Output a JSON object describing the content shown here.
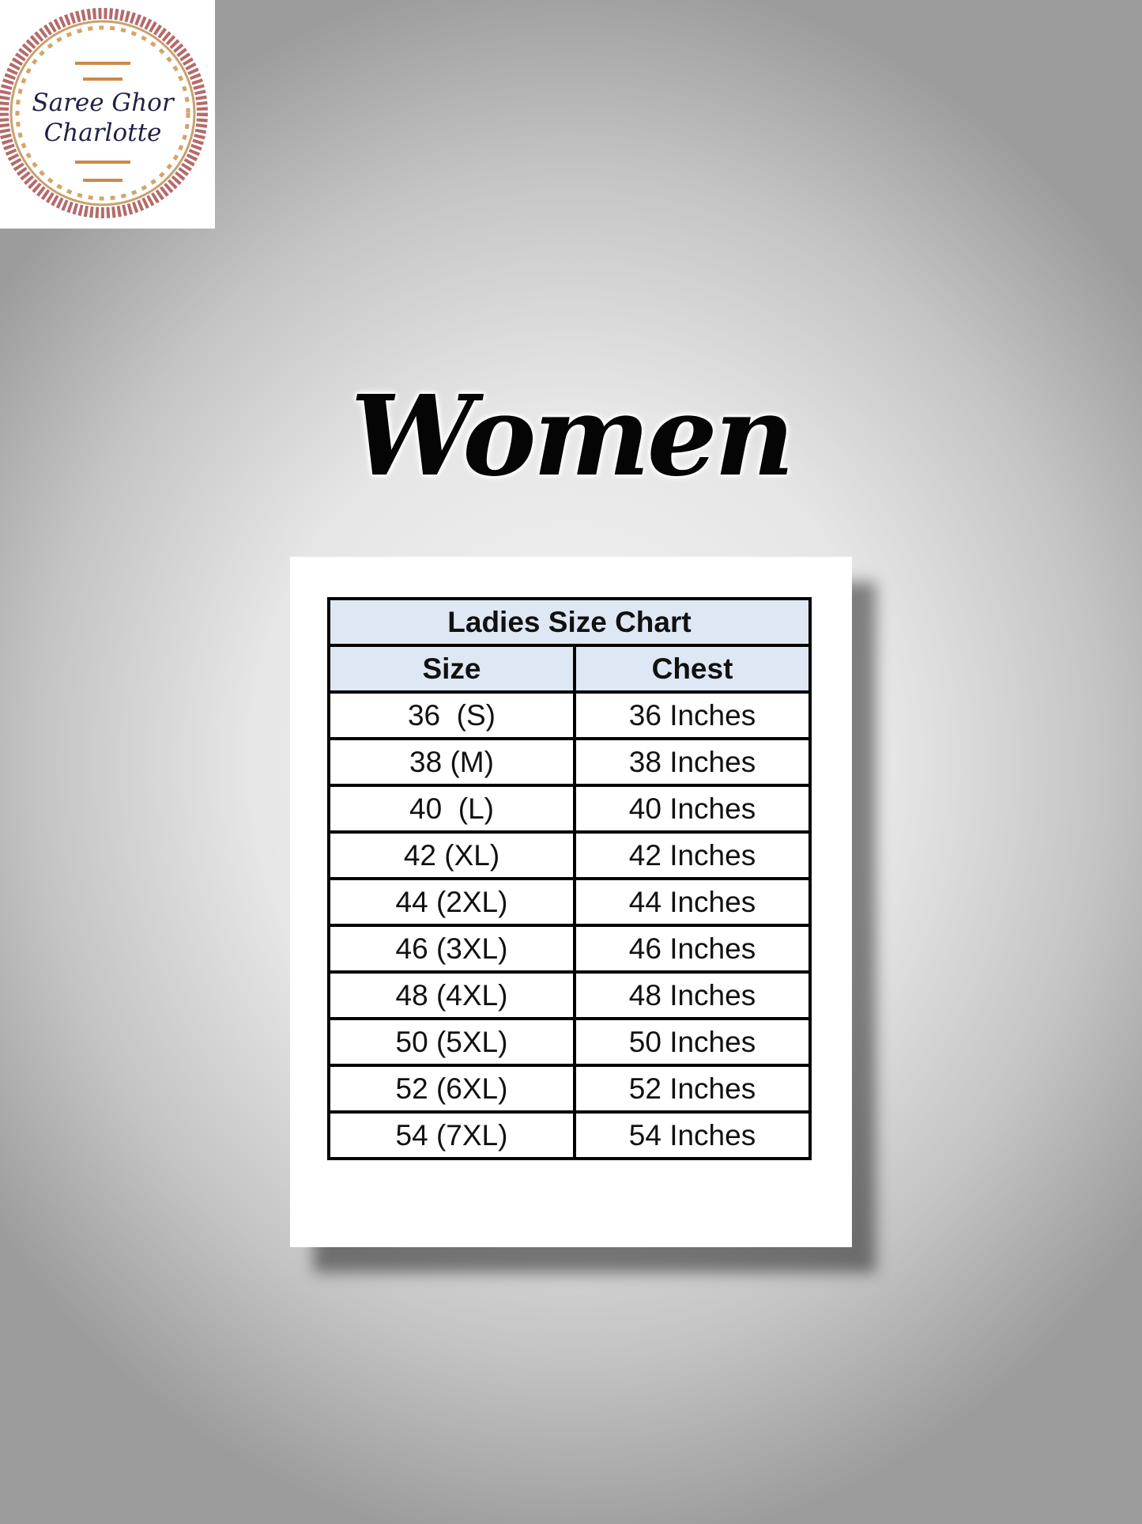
{
  "logo": {
    "line1": "Saree Ghor",
    "line2": "Charlotte"
  },
  "heading": "Women",
  "table": {
    "title": "Ladies Size Chart",
    "columns": [
      "Size",
      "Chest"
    ],
    "rows": [
      [
        "36  (S)",
        "36 Inches"
      ],
      [
        "38 (M)",
        "38 Inches"
      ],
      [
        "40  (L)",
        "40 Inches"
      ],
      [
        "42 (XL)",
        "42 Inches"
      ],
      [
        "44 (2XL)",
        "44 Inches"
      ],
      [
        "46 (3XL)",
        "46 Inches"
      ],
      [
        "48 (4XL)",
        "48 Inches"
      ],
      [
        "50 (5XL)",
        "50 Inches"
      ],
      [
        "52 (6XL)",
        "52 Inches"
      ],
      [
        "54 (7XL)",
        "54 Inches"
      ]
    ]
  }
}
